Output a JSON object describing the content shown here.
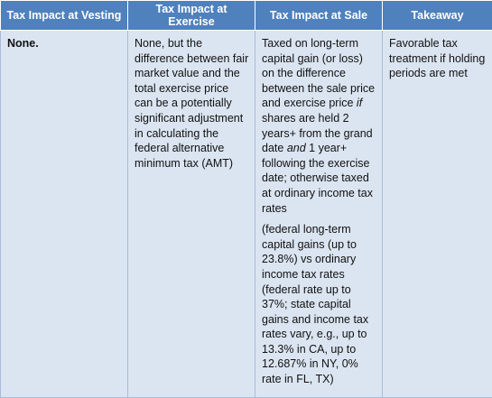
{
  "table": {
    "header": [
      "Tax Impact at Vesting",
      "Tax Impact at Exercise",
      "Tax Impact at Sale",
      "Takeaway"
    ],
    "rows": [
      [
        {
          "paragraphs": [
            {
              "runs": [
                {
                  "text": "None.",
                  "bold": true
                }
              ]
            }
          ]
        },
        {
          "paragraphs": [
            {
              "runs": [
                {
                  "text": "None, but the difference between fair market value and the total exercise price can be a potentially significant adjustment in calculating the federal alternative minimum tax (AMT)"
                }
              ]
            }
          ]
        },
        {
          "paragraphs": [
            {
              "runs": [
                {
                  "text": "Taxed on long-term capital gain (or loss) on the difference between the sale price and exercise price "
                },
                {
                  "text": "if",
                  "italic": true
                },
                {
                  "text": " shares are held 2 years+ from the grand date "
                },
                {
                  "text": "and",
                  "italic": true
                },
                {
                  "text": " 1 year+ following the exercise date; otherwise taxed at ordinary income tax rates"
                }
              ]
            },
            {
              "runs": [
                {
                  "text": "(federal long-term capital gains (up to 23.8%) vs ordinary income tax rates (federal rate up to 37%; state capital gains and income tax rates vary, e.g., up to 13.3% in CA, up to 12.687% in NY, 0% rate in FL, TX)"
                }
              ]
            }
          ]
        },
        {
          "paragraphs": [
            {
              "runs": [
                {
                  "text": "Favorable tax treatment if holding periods are met"
                }
              ]
            }
          ]
        }
      ]
    ]
  }
}
